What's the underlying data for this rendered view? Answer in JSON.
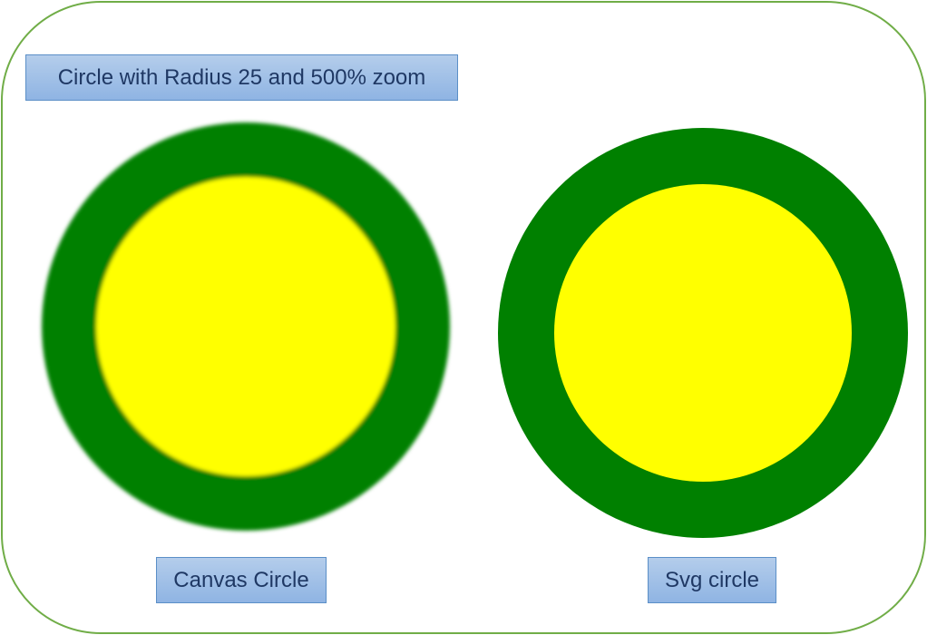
{
  "title": "Circle with Radius 25 and 500% zoom",
  "canvas_label": "Canvas Circle",
  "svg_label": "Svg circle",
  "colors": {
    "stroke": "#008000",
    "fill": "#ffff00",
    "frame": "#70ad47"
  }
}
